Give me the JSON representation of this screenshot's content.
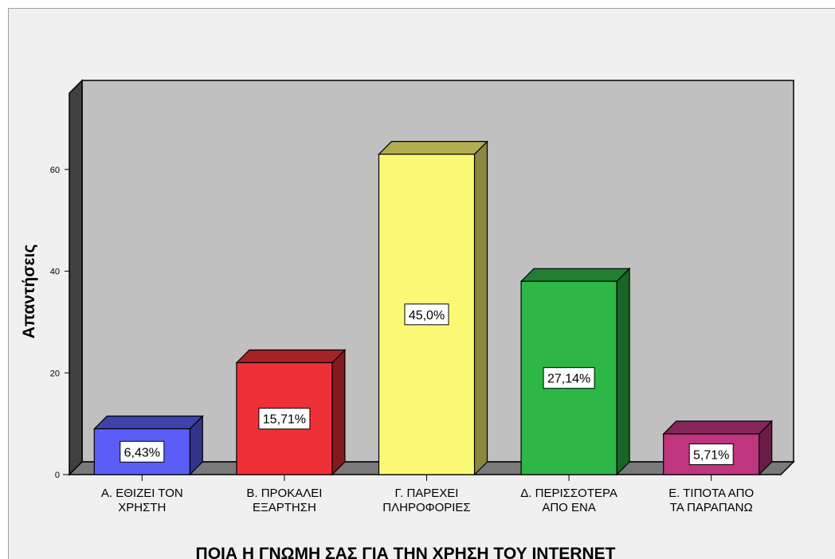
{
  "chart_data": {
    "type": "bar",
    "categories": [
      [
        "Α. ΕΘΙΖΕΙ ΤΟΝ",
        "ΧΡΗΣΤΗ"
      ],
      [
        "Β. ΠΡΟΚΑΛΕΙ",
        "ΕΞΑΡΤΗΣΗ"
      ],
      [
        "Γ. ΠΑΡΕΧΕΙ",
        "ΠΛΗΡΟΦΟΡΙΕΣ"
      ],
      [
        "Δ. ΠΕΡΙΣΣΟΤΕΡΑ",
        "ΑΠΟ ΕΝΑ"
      ],
      [
        "Ε. ΤΙΠΟΤΑ ΑΠΟ",
        "ΤΑ ΠΑΡΑΠΑΝΩ"
      ]
    ],
    "values": [
      9,
      22,
      63,
      38,
      8
    ],
    "data_labels": [
      "6,43%",
      "15,71%",
      "45,0%",
      "27,14%",
      "5,71%"
    ],
    "colors": [
      "#5a5ef7",
      "#ef3038",
      "#fbf873",
      "#2cb746",
      "#c0357f"
    ],
    "xlabel": "ΠΟΙΑ Η ΓΝΩΜΗ ΣΑΣ ΓΙΑ ΤΗΝ ΧΡΗΣΗ ΤΟΥ INTERNET",
    "ylabel": "Απαντήσεις",
    "yticks": [
      0,
      20,
      40,
      60
    ],
    "ylim": [
      0,
      75
    ],
    "style": "3d-bars",
    "grid": false,
    "plot_background": "#c0c0c0"
  }
}
